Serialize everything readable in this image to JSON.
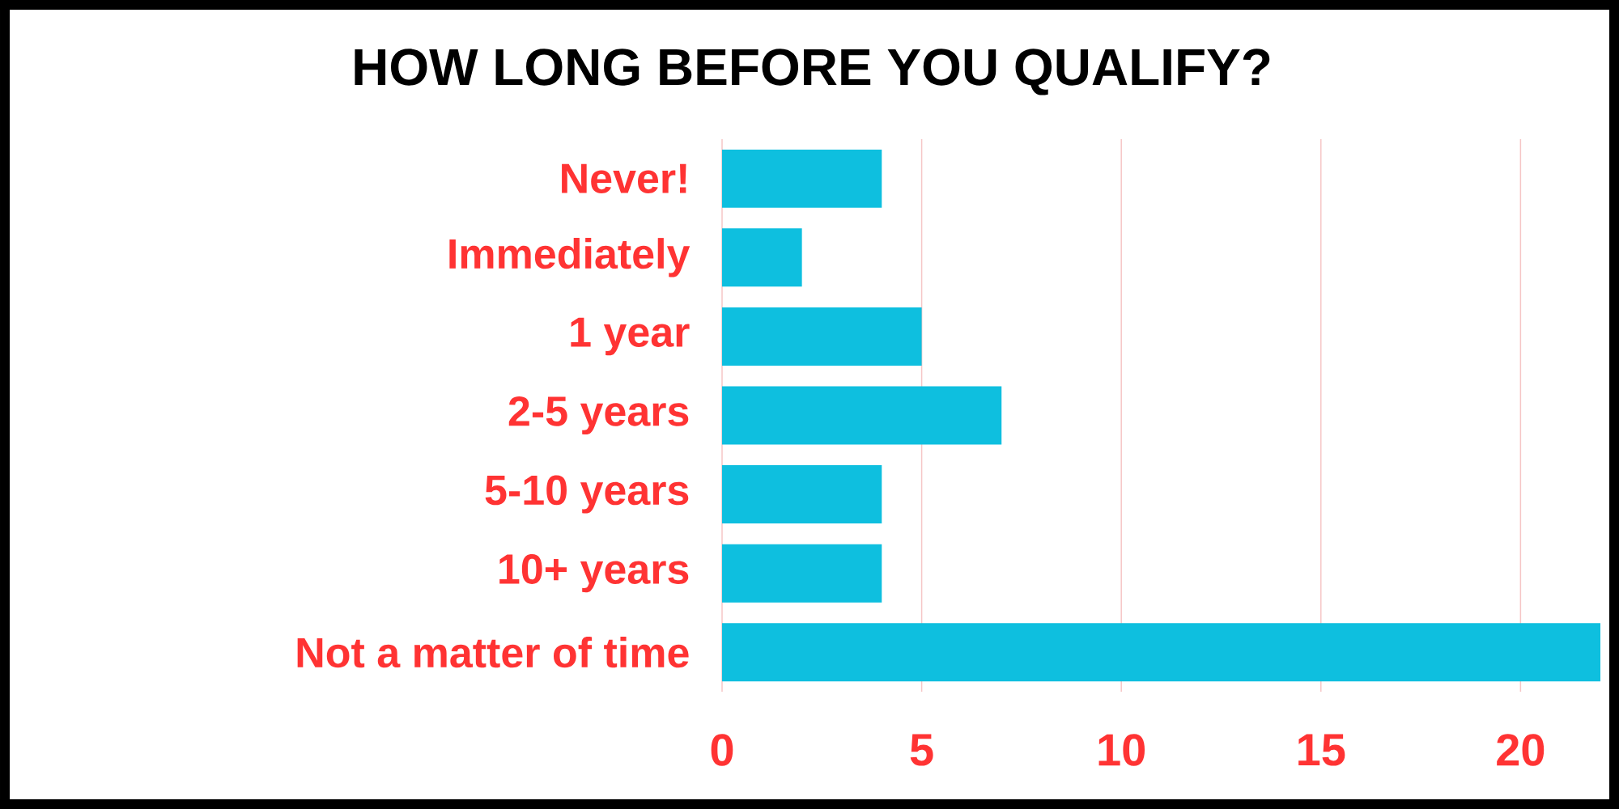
{
  "chart_data": {
    "type": "bar",
    "orientation": "horizontal",
    "title": "HOW LONG BEFORE YOU QUALIFY?",
    "categories": [
      "Never!",
      "Immediately",
      "1 year",
      "2-5 years",
      "5-10 years",
      "10+ years",
      "Not a matter of time"
    ],
    "values": [
      4,
      2,
      5,
      7,
      4,
      4,
      22
    ],
    "color": "#0ebfdf",
    "xlim": [
      0,
      22
    ],
    "xticks": [
      0,
      5,
      10,
      15,
      20
    ],
    "grid": "x"
  }
}
